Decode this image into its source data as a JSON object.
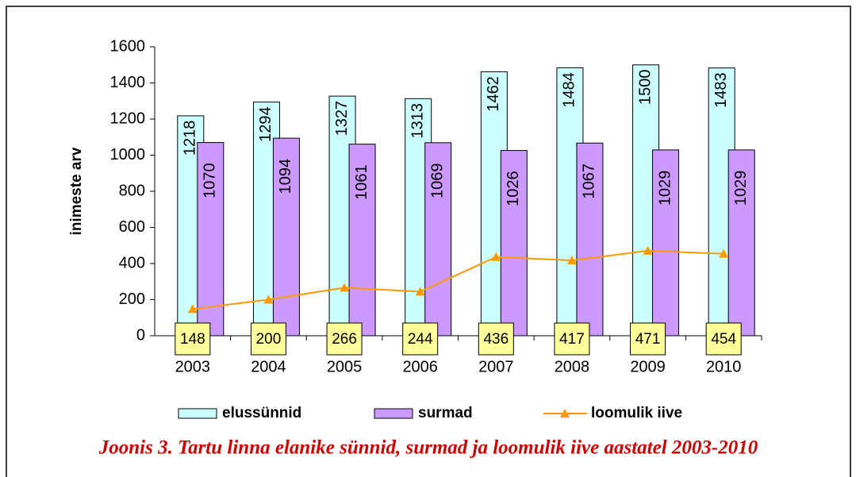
{
  "chart_data": {
    "type": "bar_line",
    "y_label": "inimeste arv",
    "caption": "Joonis 3. Tartu linna elanike sünnid, surmad ja loomulik iive aastatel 2003-2010",
    "categories": [
      "2003",
      "2004",
      "2005",
      "2006",
      "2007",
      "2008",
      "2009",
      "2010"
    ],
    "series": [
      {
        "name": "elussünnid",
        "color": "#ccffff",
        "type": "bar",
        "values": [
          1218,
          1294,
          1327,
          1313,
          1462,
          1484,
          1500,
          1483
        ]
      },
      {
        "name": "surmad",
        "color": "#cc99ff",
        "type": "bar",
        "values": [
          1070,
          1094,
          1061,
          1069,
          1026,
          1067,
          1029,
          1029
        ]
      },
      {
        "name": "loomulik iive",
        "color": "#ff9900",
        "type": "line",
        "values": [
          148,
          200,
          266,
          244,
          436,
          417,
          471,
          454
        ]
      }
    ],
    "ylim": [
      0,
      1600
    ],
    "yticks": [
      0,
      200,
      400,
      600,
      800,
      1000,
      1200,
      1400,
      1600
    ],
    "grid": false,
    "legend": "bottom"
  }
}
